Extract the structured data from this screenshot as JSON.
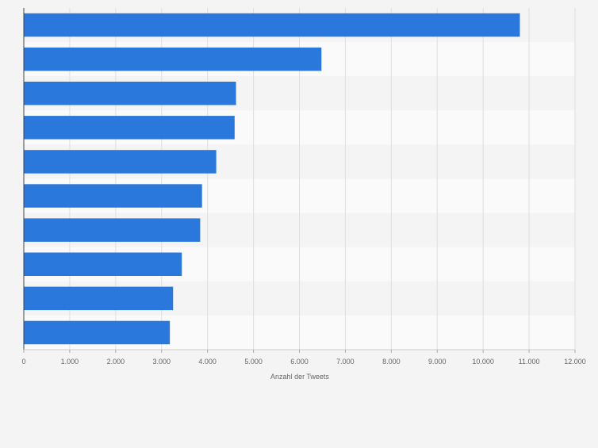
{
  "chart_data": {
    "type": "bar",
    "orientation": "horizontal",
    "categories": [
      "",
      "",
      "",
      "",
      "",
      "",
      "",
      "",
      "",
      ""
    ],
    "values": [
      10800,
      6480,
      4620,
      4590,
      4190,
      3880,
      3840,
      3440,
      3250,
      3180
    ],
    "xlabel": "Anzahl der Tweets",
    "xlim": [
      0,
      12000
    ],
    "xticks": [
      0,
      1000,
      2000,
      3000,
      4000,
      5000,
      6000,
      7000,
      8000,
      9000,
      10000,
      11000,
      12000
    ],
    "xtick_labels": [
      "0",
      "1.000",
      "2.000",
      "3.000",
      "4.000",
      "5.000",
      "6.000",
      "7.000",
      "8.000",
      "9.000",
      "10.000",
      "11.000",
      "12.000"
    ],
    "grid": "vertical",
    "legend": "none",
    "colors": {
      "bar": "#2a78dc",
      "band_odd": "#f4f4f4",
      "band_even": "#fafafa",
      "grid": "#dedede",
      "axis": "#444444",
      "text": "#666666"
    }
  }
}
